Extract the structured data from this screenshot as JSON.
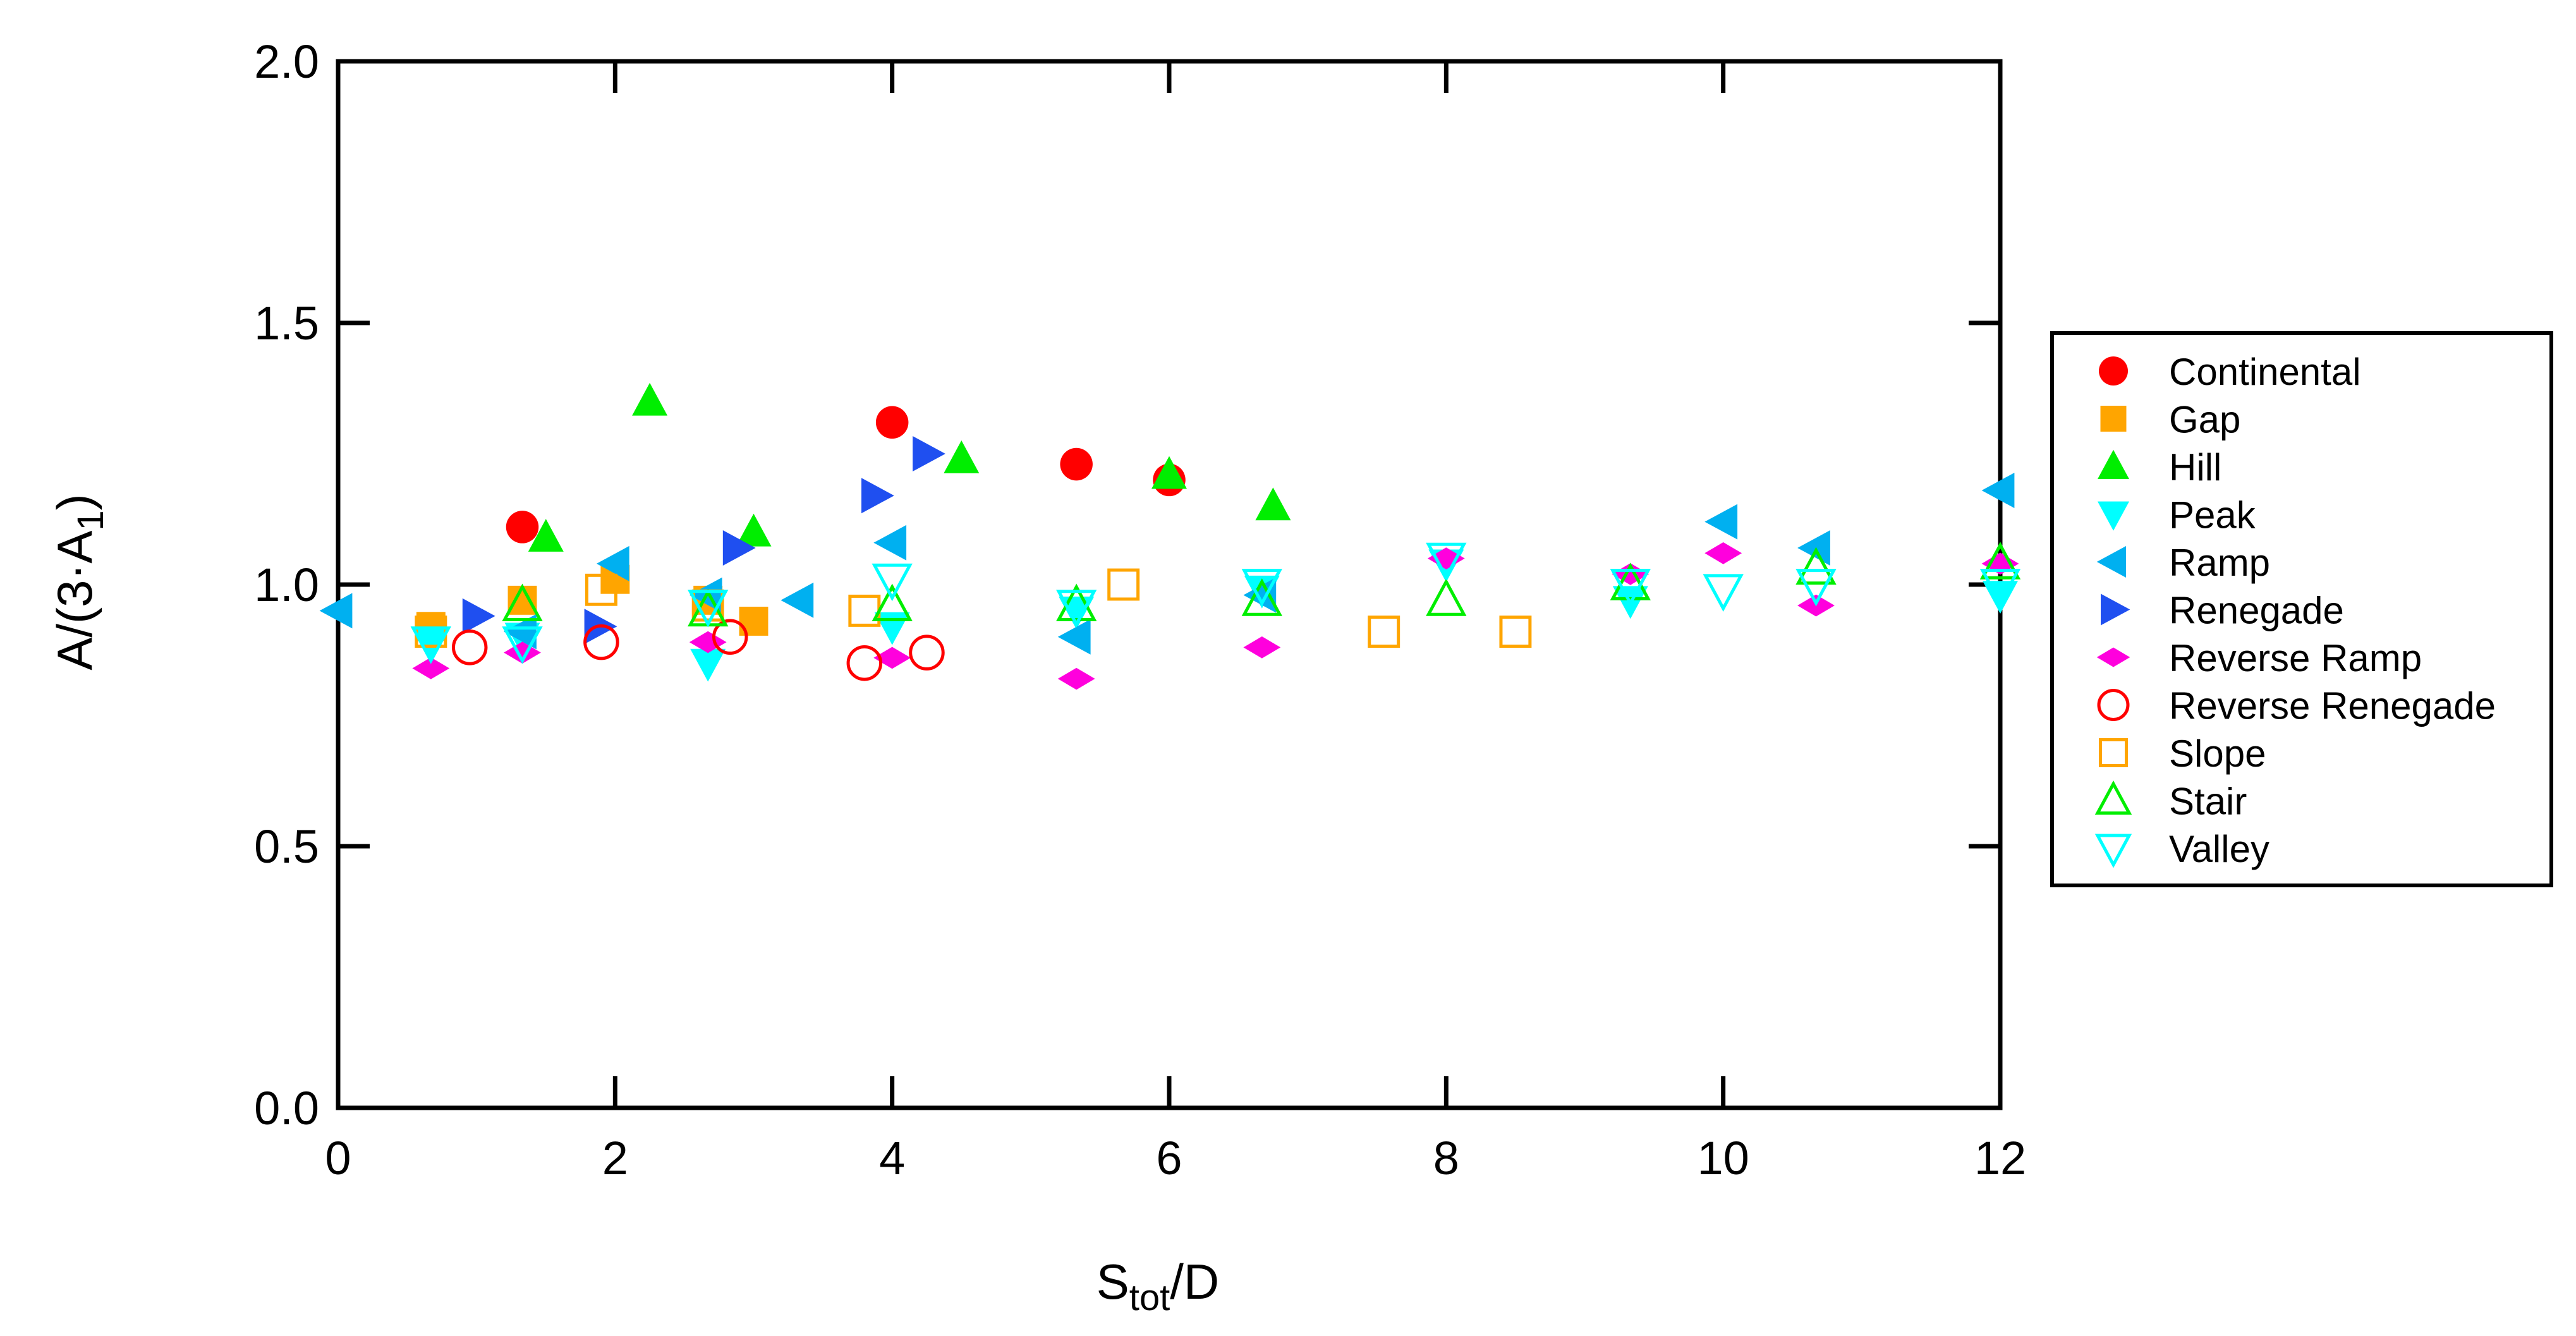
{
  "chart_data": {
    "type": "scatter",
    "xlabel": {
      "main": "S",
      "sub": "tot",
      "tail": "/D"
    },
    "ylabel": {
      "main": "A/(3·A",
      "sub": "1",
      "tail": ")"
    },
    "xlim": [
      0,
      12
    ],
    "ylim": [
      0,
      2
    ],
    "xticks": [
      "0",
      "2",
      "4",
      "6",
      "8",
      "10",
      "12"
    ],
    "yticks": [
      "0.0",
      "0.5",
      "1.0",
      "1.5",
      "2.0"
    ],
    "grid": false,
    "legend_position": "right",
    "series": [
      {
        "name": "Continental",
        "marker": "circle",
        "filled": true,
        "color": "#ff0000",
        "points": [
          [
            1.33,
            1.11
          ],
          [
            4.0,
            1.31
          ],
          [
            5.33,
            1.23
          ],
          [
            6.0,
            1.2
          ]
        ]
      },
      {
        "name": "Gap",
        "marker": "square",
        "filled": true,
        "color": "#ffa500",
        "points": [
          [
            0.67,
            0.92
          ],
          [
            1.33,
            0.97
          ],
          [
            2.0,
            1.01
          ],
          [
            2.67,
            0.97
          ],
          [
            3.0,
            0.93
          ]
        ]
      },
      {
        "name": "Hill",
        "marker": "triangle-up",
        "filled": true,
        "color": "#00ee00",
        "points": [
          [
            1.5,
            1.09
          ],
          [
            2.25,
            1.35
          ],
          [
            3.0,
            1.1
          ],
          [
            4.5,
            1.24
          ],
          [
            6.0,
            1.21
          ],
          [
            6.75,
            1.15
          ]
        ]
      },
      {
        "name": "Peak",
        "marker": "triangle-down",
        "filled": true,
        "color": "#00ffff",
        "points": [
          [
            0.67,
            0.89
          ],
          [
            1.33,
            0.9
          ],
          [
            2.67,
            0.85
          ],
          [
            4.0,
            0.92
          ],
          [
            5.33,
            0.95
          ],
          [
            6.67,
            0.99
          ],
          [
            8.0,
            1.04
          ],
          [
            9.33,
            0.97
          ],
          [
            12.0,
            0.98
          ]
        ]
      },
      {
        "name": "Ramp",
        "marker": "triangle-left",
        "filled": true,
        "color": "#00b0f0",
        "points": [
          [
            0.0,
            0.95
          ],
          [
            1.33,
            0.91
          ],
          [
            2.0,
            1.04
          ],
          [
            2.67,
            0.98
          ],
          [
            3.33,
            0.97
          ],
          [
            4.0,
            1.08
          ],
          [
            5.33,
            0.9
          ],
          [
            6.67,
            0.98
          ],
          [
            10.0,
            1.12
          ],
          [
            10.67,
            1.07
          ],
          [
            12.0,
            1.18
          ]
        ]
      },
      {
        "name": "Renegade",
        "marker": "triangle-right",
        "filled": true,
        "color": "#1f4ff0",
        "points": [
          [
            1.0,
            0.94
          ],
          [
            1.88,
            0.92
          ],
          [
            2.88,
            1.07
          ],
          [
            3.88,
            1.17
          ],
          [
            4.25,
            1.25
          ]
        ]
      },
      {
        "name": "Reverse Ramp",
        "marker": "diamond",
        "filled": true,
        "color": "#ff00dd",
        "points": [
          [
            0.67,
            0.84
          ],
          [
            1.33,
            0.87
          ],
          [
            2.67,
            0.89
          ],
          [
            4.0,
            0.86
          ],
          [
            5.33,
            0.82
          ],
          [
            6.67,
            0.88
          ],
          [
            8.0,
            1.05
          ],
          [
            9.33,
            1.02
          ],
          [
            10.0,
            1.06
          ],
          [
            10.67,
            0.96
          ],
          [
            12.0,
            1.04
          ]
        ]
      },
      {
        "name": "Reverse Renegade",
        "marker": "circle",
        "filled": false,
        "color": "#ff0000",
        "points": [
          [
            0.95,
            0.88
          ],
          [
            1.9,
            0.89
          ],
          [
            2.83,
            0.9
          ],
          [
            3.8,
            0.85
          ],
          [
            4.25,
            0.87
          ]
        ]
      },
      {
        "name": "Slope",
        "marker": "square",
        "filled": false,
        "color": "#ffa500",
        "points": [
          [
            0.67,
            0.91
          ],
          [
            1.9,
            0.99
          ],
          [
            2.67,
            0.96
          ],
          [
            3.8,
            0.95
          ],
          [
            5.67,
            1.0
          ],
          [
            7.55,
            0.91
          ],
          [
            8.5,
            0.91
          ]
        ]
      },
      {
        "name": "Stair",
        "marker": "triangle-up",
        "filled": false,
        "color": "#00ee00",
        "points": [
          [
            1.33,
            0.96
          ],
          [
            2.67,
            0.95
          ],
          [
            4.0,
            0.96
          ],
          [
            5.33,
            0.96
          ],
          [
            6.67,
            0.97
          ],
          [
            8.0,
            0.97
          ],
          [
            9.33,
            1.0
          ],
          [
            10.67,
            1.03
          ],
          [
            12.0,
            1.04
          ]
        ]
      },
      {
        "name": "Valley",
        "marker": "triangle-down",
        "filled": false,
        "color": "#00ffff",
        "points": [
          [
            0.67,
            0.89
          ],
          [
            1.33,
            0.89
          ],
          [
            2.67,
            0.96
          ],
          [
            4.0,
            1.01
          ],
          [
            5.33,
            0.96
          ],
          [
            6.67,
            1.0
          ],
          [
            8.0,
            1.05
          ],
          [
            9.33,
            1.0
          ],
          [
            10.0,
            0.99
          ],
          [
            10.67,
            1.0
          ],
          [
            12.0,
            1.0
          ]
        ]
      }
    ]
  }
}
